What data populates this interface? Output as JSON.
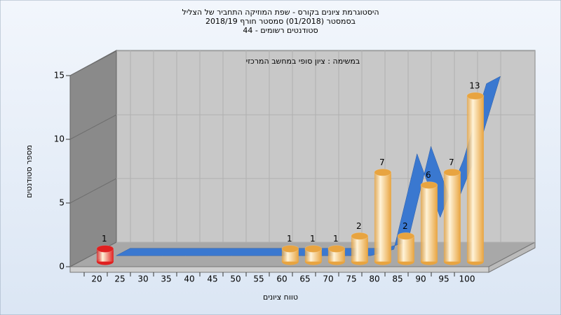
{
  "chart_data": {
    "type": "bar",
    "title": [
      "היסטוגרמת ציונים בקורס - שפת המוזיקה התחביר של הצליל",
      "בסמסטר  (01/2018)  סמסטר חורף 2018/19",
      "סטודנטים רשומים - 44"
    ],
    "subtitle": "במשימה : ציון סופי במחשב המרכזי",
    "x_label": "טווח ציונים",
    "y_label": "מספר סטודנטים",
    "categories": [
      "20",
      "25",
      "30",
      "35",
      "40",
      "45",
      "50",
      "55",
      "60",
      "65",
      "70",
      "75",
      "80",
      "85",
      "90",
      "95",
      "100"
    ],
    "values": [
      1,
      0,
      0,
      0,
      0,
      0,
      0,
      0,
      1,
      1,
      1,
      2,
      7,
      2,
      6,
      7,
      13
    ],
    "colors": [
      "#e02020",
      "#e8a440",
      "#e8a440",
      "#e8a440",
      "#e8a440",
      "#e8a440",
      "#e8a440",
      "#e8a440",
      "#e8a440",
      "#e8a440",
      "#e8a440",
      "#e8a440",
      "#e8a440",
      "#e8a440",
      "#e8a440",
      "#e8a440",
      "#e8a440"
    ],
    "ribbon": {
      "color": "#3a78d0",
      "values": [
        0,
        0,
        0,
        0,
        0,
        0,
        0,
        0,
        0,
        0,
        0,
        0,
        0.5,
        8,
        3,
        7.5,
        13.5
      ]
    },
    "ylim": [
      0,
      15
    ],
    "yticks": [
      0,
      5,
      10,
      15
    ],
    "grid": true
  }
}
